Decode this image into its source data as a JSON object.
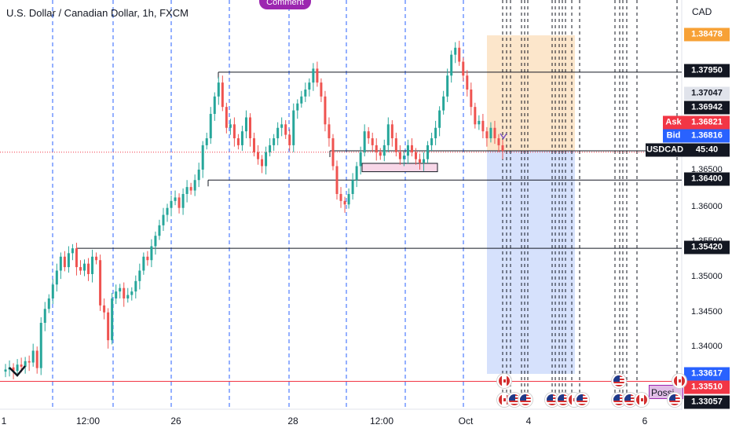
{
  "header": {
    "title": "U.S. Dollar / Canadian Dollar, 1h, FXCM",
    "comment_label": "Comment"
  },
  "price_axis": {
    "unit": "CAD",
    "ticks": [
      "1.36500",
      "1.36000",
      "1.35500",
      "1.35000",
      "1.34500",
      "1.34000"
    ],
    "labels": {
      "target_top": "1.38478",
      "level_1": "1.37950",
      "val_a": "1.37047",
      "val_b": "1.36942",
      "ask_value": "1.36821",
      "bid_value": "1.36816",
      "countdown": "45:40",
      "level_2": "1.36400",
      "level_3": "1.35420",
      "stop_bottom": "1.33617",
      "red_line": "1.33510",
      "last_low": "1.33057"
    },
    "tags": {
      "ask": "Ask",
      "bid": "Bid",
      "symbol": "USDCAD"
    }
  },
  "time_axis": {
    "ticks": [
      "1",
      "12:00",
      "26",
      "28",
      "12:00",
      "Oct",
      "4",
      "6"
    ]
  },
  "overlay": {
    "note_text": "Possi"
  },
  "colors": {
    "up": "#26a69a",
    "down": "#ef5350",
    "level_line": "#131722",
    "dashed_grid": "#2962ff",
    "target_zone": "#fbe2c2",
    "stop_zone": "#cfdcfb",
    "red_line": "#f23645",
    "consolidation_box": "#f8d7e8"
  },
  "chart_data": {
    "type": "candlestick",
    "symbol": "USDCAD",
    "timeframe": "1h",
    "y_range": [
      1.33,
      1.388
    ],
    "horizontal_levels": [
      1.3795,
      1.364,
      1.3542,
      1.3351
    ],
    "position": {
      "entry": 1.3682,
      "target": 1.38478,
      "stop": 1.33617
    },
    "price_path": [
      1.3365,
      1.3368,
      1.3371,
      1.3366,
      1.3375,
      1.3372,
      1.338,
      1.3378,
      1.3395,
      1.337,
      1.3435,
      1.3455,
      1.347,
      1.349,
      1.351,
      1.353,
      1.3515,
      1.3535,
      1.3542,
      1.3515,
      1.351,
      1.352,
      1.3505,
      1.353,
      1.3525,
      1.346,
      1.345,
      1.341,
      1.347,
      1.348,
      1.3485,
      1.347,
      1.3475,
      1.348,
      1.3495,
      1.351,
      1.353,
      1.3525,
      1.3545,
      1.356,
      1.3575,
      1.359,
      1.36,
      1.361,
      1.3615,
      1.36,
      1.362,
      1.363,
      1.3625,
      1.364,
      1.3655,
      1.369,
      1.37,
      1.3735,
      1.376,
      1.378,
      1.3745,
      1.3715,
      1.372,
      1.37,
      1.369,
      1.371,
      1.373,
      1.37,
      1.368,
      1.367,
      1.366,
      1.368,
      1.369,
      1.37,
      1.3715,
      1.372,
      1.3705,
      1.369,
      1.374,
      1.375,
      1.376,
      1.377,
      1.378,
      1.38,
      1.378,
      1.376,
      1.372,
      1.37,
      1.366,
      1.362,
      1.361,
      1.3605,
      1.362,
      1.364,
      1.366,
      1.368,
      1.371,
      1.37,
      1.369,
      1.368,
      1.3675,
      1.369,
      1.372,
      1.37,
      1.368,
      1.367,
      1.3675,
      1.369,
      1.368,
      1.367,
      1.3665,
      1.367,
      1.369,
      1.37,
      1.3715,
      1.374,
      1.376,
      1.379,
      1.382,
      1.383,
      1.381,
      1.379,
      1.377,
      1.3745,
      1.372,
      1.3725,
      1.371,
      1.37,
      1.3715,
      1.37,
      1.369,
      1.3682
    ]
  }
}
